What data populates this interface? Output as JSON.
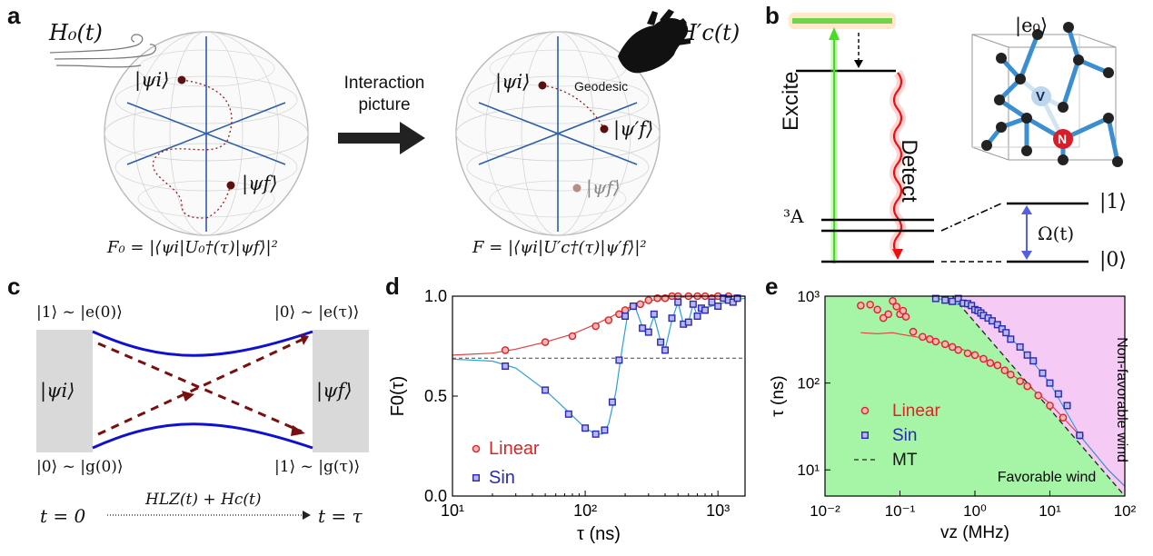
{
  "panel_a": {
    "label": "a",
    "h0": "H₀(t)",
    "hc": "H′c(t)",
    "psi_i": "|ψi⟩",
    "psi_f": "|ψf⟩",
    "psi_f_prime": "|ψ′f⟩",
    "geodesic": "Geodesic",
    "arrow_text_1": "Interaction",
    "arrow_text_2": "picture",
    "f0_formula": "F₀ = |⟨ψi|U₀†(τ)|ψf⟩|²",
    "f_formula": "F = |⟨ψi|U′c†(τ)|ψ′f⟩|²"
  },
  "panel_b": {
    "label": "b",
    "e0": "|e₀⟩",
    "excite": "Excite",
    "detect": "Detect",
    "ground_state": "³A",
    "ket1": "|1⟩",
    "ket0": "|0⟩",
    "omega": "Ω(t)",
    "vacancy": "V",
    "nitrogen": "N"
  },
  "panel_c": {
    "label": "c",
    "top_left": "|1⟩ ~ |e(0)⟩",
    "top_right": "|0⟩ ~ |e(τ)⟩",
    "bottom_left": "|0⟩ ~ |g(0)⟩",
    "bottom_right": "|1⟩ ~ |g(τ)⟩",
    "psi_i": "|ψi⟩",
    "psi_f": "|ψf⟩",
    "t_start": "t = 0",
    "t_end": "t = τ",
    "hamiltonian": "HLZ(t) + Hc(t)"
  },
  "chart_data": [
    {
      "panel": "d",
      "type": "scatter",
      "ylabel": "F0(τ)",
      "xlabel": "τ (ns)",
      "xscale": "log",
      "xlim": [
        10,
        1600
      ],
      "ylim": [
        0,
        1.0
      ],
      "xticks": [
        "10¹",
        "10²",
        "10³"
      ],
      "yticks": [
        "0.0",
        "0.5",
        "1.0"
      ],
      "reference_line": 0.69,
      "legend": [
        "Linear",
        "Sin"
      ],
      "legend_position": "bottom-left",
      "series": [
        {
          "name": "Linear",
          "color": "#d62728",
          "marker": "circle",
          "x": [
            25,
            50,
            80,
            120,
            150,
            180,
            200,
            230,
            260,
            300,
            350,
            400,
            450,
            500,
            600,
            700,
            800,
            900,
            1000,
            1200,
            1400
          ],
          "y": [
            0.73,
            0.77,
            0.8,
            0.85,
            0.88,
            0.91,
            0.93,
            0.95,
            0.96,
            0.98,
            0.99,
            0.99,
            1.0,
            1.0,
            1.0,
            1.0,
            1.0,
            0.99,
            1.0,
            1.0,
            0.99
          ]
        },
        {
          "name": "Sin",
          "color": "#2a2ab0",
          "marker": "square",
          "x": [
            25,
            50,
            75,
            100,
            120,
            140,
            160,
            180,
            200,
            230,
            270,
            300,
            330,
            370,
            400,
            450,
            500,
            550,
            600,
            650,
            700,
            750,
            800,
            900,
            1000,
            1100,
            1200,
            1300,
            1400
          ],
          "y": [
            0.65,
            0.53,
            0.41,
            0.34,
            0.31,
            0.33,
            0.47,
            0.68,
            0.9,
            0.95,
            0.84,
            0.82,
            0.91,
            0.77,
            0.73,
            0.89,
            0.97,
            0.86,
            0.87,
            0.96,
            0.9,
            0.94,
            0.93,
            0.97,
            0.95,
            0.99,
            0.98,
            0.97,
            0.99
          ]
        }
      ]
    },
    {
      "panel": "e",
      "type": "scatter",
      "ylabel": "τ (ns)",
      "xlabel": "vz (MHz)",
      "xscale": "log",
      "yscale": "log",
      "xlim": [
        0.01,
        100
      ],
      "ylim": [
        5,
        1000
      ],
      "xticks": [
        "10⁻²",
        "10⁻¹",
        "10⁰",
        "10¹",
        "10²"
      ],
      "yticks": [
        "10¹",
        "10²",
        "10³"
      ],
      "regions": [
        "Favorable wind",
        "Non-favorable wind"
      ],
      "region_colors": [
        "#a6f5a6",
        "#f5caf5"
      ],
      "legend": [
        "Linear",
        "Sin",
        "MT"
      ],
      "legend_position": "center-left",
      "series": [
        {
          "name": "Linear",
          "color": "#d62728",
          "marker": "circle",
          "x": [
            0.03,
            0.04,
            0.05,
            0.06,
            0.07,
            0.08,
            0.09,
            0.1,
            0.11,
            0.12,
            0.15,
            0.2,
            0.25,
            0.3,
            0.4,
            0.5,
            0.6,
            0.8,
            1.0,
            1.3,
            1.6,
            2.0,
            2.5,
            3,
            4,
            5,
            7,
            10,
            15,
            25
          ],
          "y": [
            780,
            800,
            700,
            560,
            620,
            880,
            760,
            620,
            680,
            580,
            390,
            340,
            320,
            300,
            280,
            260,
            240,
            220,
            210,
            190,
            170,
            160,
            140,
            125,
            105,
            92,
            72,
            55,
            40,
            25
          ]
        },
        {
          "name": "Sin",
          "color": "#2a2ab0",
          "marker": "square",
          "x": [
            0.3,
            0.4,
            0.5,
            0.6,
            0.7,
            0.8,
            0.9,
            1.0,
            1.1,
            1.2,
            1.3,
            1.5,
            1.7,
            2.0,
            2.3,
            2.6,
            3,
            4,
            5,
            6,
            8,
            10,
            13,
            17,
            25
          ],
          "y": [
            940,
            900,
            870,
            940,
            830,
            820,
            780,
            700,
            680,
            640,
            600,
            560,
            520,
            470,
            420,
            380,
            320,
            260,
            210,
            180,
            130,
            100,
            75,
            55,
            25
          ]
        },
        {
          "name": "MT",
          "color": "#222222",
          "style": "dashed",
          "x": [
            0.5,
            100
          ],
          "y": [
            1000,
            5
          ]
        }
      ]
    }
  ]
}
